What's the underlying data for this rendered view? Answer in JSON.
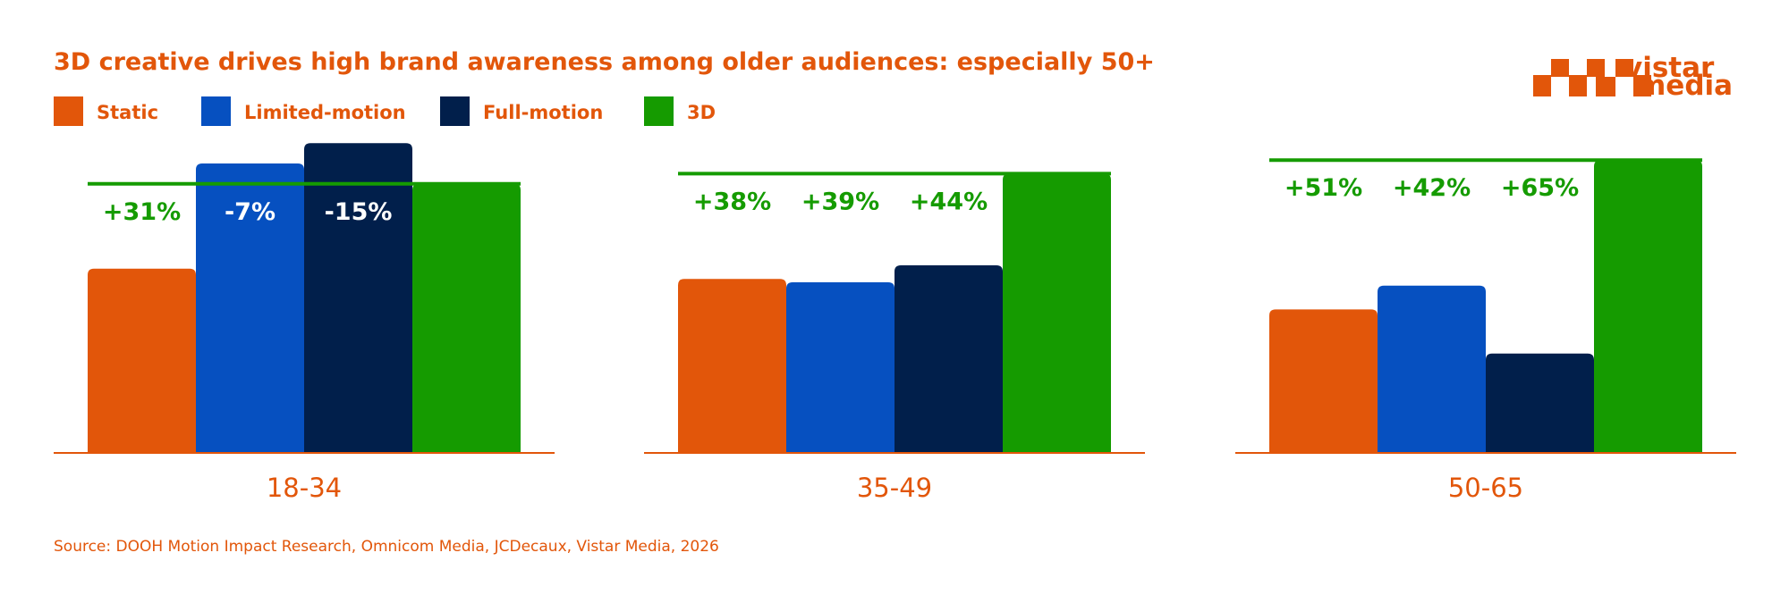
{
  "chart_data": {
    "type": "bar",
    "title": "3D creative drives high brand awareness among older audiences: especially 50+",
    "categories": [
      "18-34",
      "35-49",
      "50-65"
    ],
    "series": [
      {
        "name": "Static",
        "values": [
          54,
          51,
          42
        ]
      },
      {
        "name": "Limited-motion",
        "values": [
          85,
          50,
          49
        ]
      },
      {
        "name": "Full-motion",
        "values": [
          91,
          55,
          29
        ]
      },
      {
        "name": "3D",
        "values": [
          79,
          82,
          86
        ]
      }
    ],
    "differences": [
      [
        "+31%",
        "-7%",
        "-15%"
      ],
      [
        "+38%",
        "+39%",
        "+44%"
      ],
      [
        "+51%",
        "+42%",
        "+65%"
      ]
    ],
    "ylim": [
      0,
      100
    ],
    "legend_position": "top-left",
    "source": "Source: DOOH Motion Impact Research, Omnicom Media, JCDecaux, Vistar Media, 2026"
  },
  "colors": {
    "Static": "#e2560a",
    "Limited-motion": "#0650c0",
    "Full-motion": "#011f4b",
    "3D": "#159b00",
    "accent": "#e2560a",
    "diff_on_bg": "#159b00",
    "diff_on_bar": "#ffffff"
  },
  "logo": {
    "line1": "vistar",
    "line2": "media"
  }
}
